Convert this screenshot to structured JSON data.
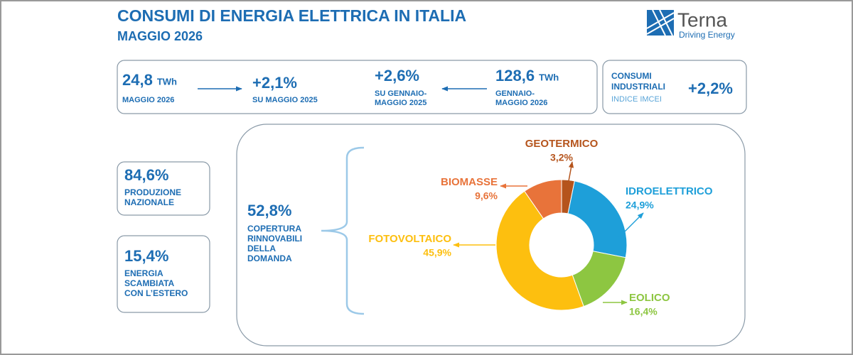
{
  "header": {
    "title": "CONSUMI DI ENERGIA ELETTRICA IN ITALIA",
    "subtitle": "MAGGIO 2026"
  },
  "logo": {
    "name": "Terna",
    "tagline": "Driving Energy"
  },
  "kpis": [
    {
      "value": "24,8",
      "unit": "TWh",
      "lines": [
        "MAGGIO 2026"
      ]
    },
    {
      "value": "+2,1%",
      "lines": [
        "SU MAGGIO 2025"
      ]
    },
    {
      "value": "+2,6%",
      "lines": [
        "SU GENNAIO-",
        "MAGGIO 2025"
      ]
    },
    {
      "value": "128,6",
      "unit": "TWh",
      "lines": [
        "GENNAIO-",
        "MAGGIO 2026"
      ]
    },
    {
      "value": "84,6%",
      "lines": [
        "PRODUZIONE",
        "NAZIONALE"
      ]
    },
    {
      "value": "15,4%",
      "lines": [
        "ENERGIA",
        "SCAMBIATA",
        "CON L’ESTERO"
      ]
    },
    {
      "value": "52,8%",
      "lines": [
        "COPERTURA",
        "RINNOVABILI",
        "DELLA",
        "DOMANDA"
      ]
    }
  ],
  "industrial": {
    "lines": [
      "CONSUMI",
      "INDUSTRIALI"
    ],
    "note": "INDICE IMCEI",
    "value": "+2,2%"
  },
  "chart_data": {
    "type": "donut",
    "categories": [
      "GEOTERMICO",
      "IDROELETTRICO",
      "EOLICO",
      "FOTOVOLTAICO",
      "BIOMASSE"
    ],
    "values": [
      3.2,
      24.9,
      16.4,
      45.9,
      9.6
    ],
    "value_labels": [
      "3,2%",
      "24,9%",
      "16,4%",
      "45,9%",
      "9,6%"
    ],
    "colors": [
      "#b5541c",
      "#1e9fd9",
      "#8dc641",
      "#fdbf0f",
      "#e8733a"
    ]
  }
}
